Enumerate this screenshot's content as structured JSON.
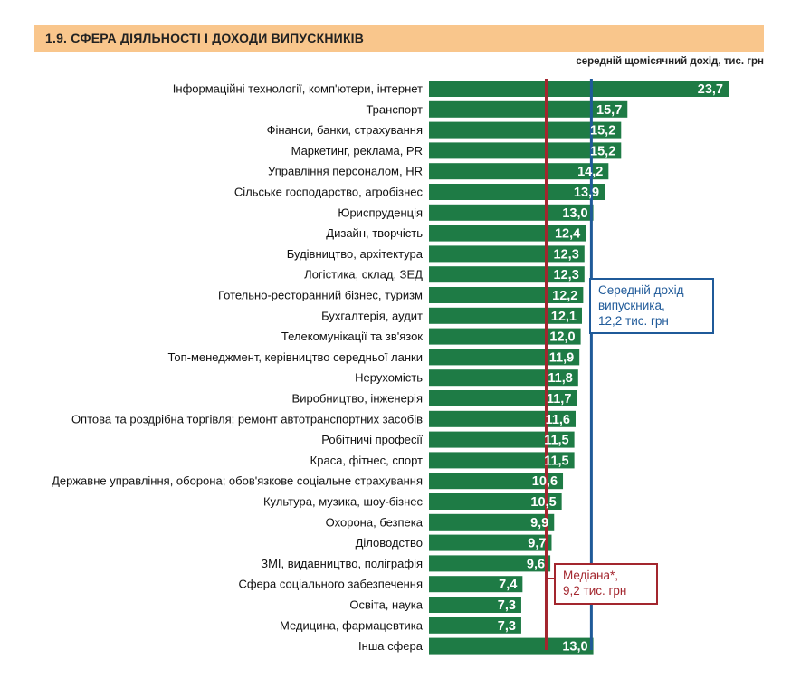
{
  "header": {
    "title": "1.9. СФЕРА ДІЯЛЬНОСТІ І ДОХОДИ ВИПУСКНИКІВ",
    "subtitle": "середній щомісячний дохід, тис. грн"
  },
  "colors": {
    "header_bg": "#f9c68c",
    "bar": "#1e7b45",
    "mean_line": "#1f5a99",
    "median_line": "#a3262e"
  },
  "annotations": {
    "mean": {
      "line1": "Середній дохід",
      "line2": "випускника,",
      "line3": "12,2 тис. грн"
    },
    "median": {
      "line1": "Медіана*,",
      "line2": "9,2 тис. грн"
    }
  },
  "chart_data": {
    "type": "bar",
    "orientation": "horizontal",
    "categories": [
      "Інформаційні технології, комп'ютери, інтернет",
      "Транспорт",
      "Фінанси, банки, страхування",
      "Маркетинг, реклама, PR",
      "Управління персоналом, HR",
      "Сільське господарство, агробізнес",
      "Юриспруденція",
      "Дизайн, творчість",
      "Будівництво, архітектура",
      "Логістика, склад, ЗЕД",
      "Готельно-ресторанний бізнес, туризм",
      "Бухгалтерія, аудит",
      "Телекомунікації та зв'язок",
      "Топ-менеджмент, керівництво середньої ланки",
      "Нерухомість",
      "Виробництво, інженерія",
      "Оптова та роздрібна торгівля; ремонт автотранспортних засобів",
      "Робітничі професії",
      "Краса, фітнес, спорт",
      "Державне управління, оборона; обов'язкове соціальне страхування",
      "Культура, музика, шоу-бізнес",
      "Охорона, безпека",
      "Діловодство",
      "ЗМІ, видавництво, поліграфія",
      "Сфера соціального забезпечення",
      "Освіта, наука",
      "Медицина, фармацевтика",
      "Інша сфера"
    ],
    "values": [
      23.7,
      15.7,
      15.2,
      15.2,
      14.2,
      13.9,
      13.0,
      12.4,
      12.3,
      12.3,
      12.2,
      12.1,
      12.0,
      11.9,
      11.8,
      11.7,
      11.6,
      11.5,
      11.5,
      10.6,
      10.5,
      9.9,
      9.7,
      9.6,
      7.4,
      7.3,
      7.3,
      13.0
    ],
    "labels": [
      "23,7",
      "15,7",
      "15,2",
      "15,2",
      "14,2",
      "13,9",
      "13,0",
      "12,4",
      "12,3",
      "12,3",
      "12,2",
      "12,1",
      "12,0",
      "11,9",
      "11,8",
      "11,7",
      "11,6",
      "11,5",
      "11,5",
      "10,6",
      "10,5",
      "9,9",
      "9,7",
      "9,6",
      "7,4",
      "7,3",
      "7,3",
      "13,0"
    ],
    "reference_lines": [
      {
        "label": "Середній дохід випускника",
        "value": 12.2
      },
      {
        "label": "Медіана",
        "value": 9.2
      }
    ],
    "xlim": [
      0,
      23.7
    ],
    "title": "1.9. СФЕРА ДІЯЛЬНОСТІ І ДОХОДИ ВИПУСКНИКІВ",
    "xlabel": "середній щомісячний дохід, тис. грн",
    "ylabel": "",
    "grid": false,
    "legend": "none"
  }
}
